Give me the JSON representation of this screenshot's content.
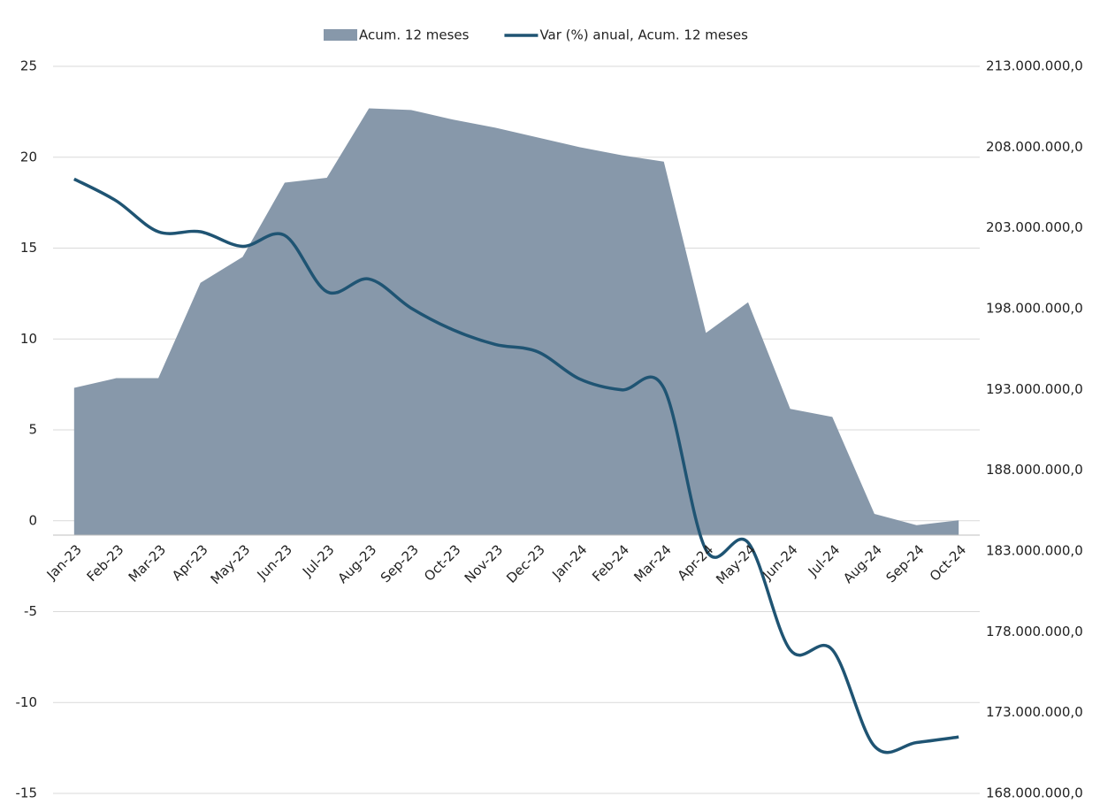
{
  "chart_data": {
    "type": "area_line",
    "categories": [
      "Jan-23",
      "Feb-23",
      "Mar-23",
      "Apr-23",
      "May-23",
      "Jun-23",
      "Jul-23",
      "Aug-23",
      "Sep-23",
      "Oct-23",
      "Nov-23",
      "Dec-23",
      "Jan-24",
      "Feb-24",
      "Mar-24",
      "Apr-24",
      "May-24",
      "Jun-24",
      "Jul-24",
      "Aug-24",
      "Sep-24",
      "Oct-24"
    ],
    "series": [
      {
        "name": "Acum. 12 meses",
        "type": "area",
        "axis": "y2",
        "color": "#8798aa",
        "values": [
          193100000,
          193700000,
          193700000,
          199600000,
          201200000,
          205800000,
          206100000,
          210400000,
          210300000,
          209700000,
          209200000,
          208600000,
          208000000,
          207500000,
          207100000,
          196500000,
          198400000,
          191800000,
          191300000,
          185300000,
          184600000,
          184900000
        ]
      },
      {
        "name": "Var (%) anual, Acum. 12 meses",
        "type": "line",
        "color": "#1f5473",
        "values": [
          18.8,
          17.6,
          15.9,
          15.9,
          15.1,
          15.7,
          12.6,
          13.3,
          11.7,
          10.5,
          9.7,
          9.3,
          7.8,
          7.2,
          7.3,
          -1.6,
          -1.2,
          -7.1,
          -7.1,
          -12.4,
          -12.2,
          -11.9
        ]
      }
    ],
    "ylim": [
      -15,
      25
    ],
    "yticks": [
      -15,
      -10,
      -5,
      0,
      5,
      10,
      15,
      20,
      25
    ],
    "y2lim": [
      168000000,
      213000000
    ],
    "y2ticks": [
      {
        "value": 168000000,
        "label": "168.000.000,0"
      },
      {
        "value": 173000000,
        "label": "173.000.000,0"
      },
      {
        "value": 178000000,
        "label": "178.000.000,0"
      },
      {
        "value": 183000000,
        "label": "183.000.000,0"
      },
      {
        "value": 188000000,
        "label": "188.000.000,0"
      },
      {
        "value": 193000000,
        "label": "193.000.000,0"
      },
      {
        "value": 198000000,
        "label": "198.000.000,0"
      },
      {
        "value": 203000000,
        "label": "203.000.000,0"
      },
      {
        "value": 208000000,
        "label": "208.000.000,0"
      },
      {
        "value": 213000000,
        "label": "213.000.000,0"
      }
    ],
    "grid": true,
    "legend": "top"
  }
}
